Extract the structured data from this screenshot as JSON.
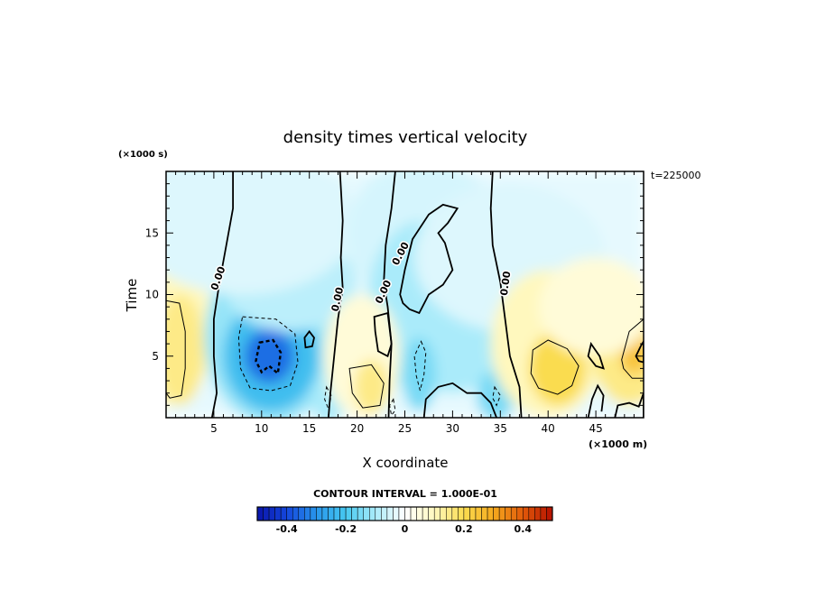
{
  "chart_data": {
    "type": "heatmap",
    "title": "density times vertical velocity",
    "xlabel": "X coordinate",
    "ylabel": "Time",
    "x_unit_label": "(×1000 m)",
    "y_unit_label": "(×1000 s)",
    "time_stamp": "t=225000",
    "xlim": [
      0,
      50
    ],
    "ylim": [
      0,
      20
    ],
    "x_ticks": [
      5,
      10,
      15,
      20,
      25,
      30,
      35,
      40,
      45
    ],
    "y_ticks": [
      5,
      10,
      15
    ],
    "contour_interval_text": "CONTOUR INTERVAL = 1.000E-01",
    "contour_labels": [
      "0.00",
      "0.00",
      "0.00",
      "0.00",
      "0.00"
    ],
    "colorbar": {
      "range": [
        -0.5,
        0.5
      ],
      "ticks": [
        "-0.4",
        "-0.2",
        "0",
        "0.2",
        "0.4"
      ],
      "tick_values": [
        -0.4,
        -0.2,
        0,
        0.2,
        0.4
      ]
    },
    "features": [
      {
        "name": "negative-core",
        "x": 11,
        "y": 5,
        "value": -0.4
      },
      {
        "name": "negative-lobe",
        "x": 26.5,
        "y": 3.5,
        "value": -0.15
      },
      {
        "name": "negative-lobe",
        "x": 34.5,
        "y": 1.5,
        "value": -0.15
      },
      {
        "name": "positive-lobe",
        "x": 1.5,
        "y": 5.5,
        "value": 0.15
      },
      {
        "name": "positive-lobe",
        "x": 21.5,
        "y": 2.5,
        "value": 0.15
      },
      {
        "name": "positive-lobe",
        "x": 41,
        "y": 4,
        "value": 0.2
      },
      {
        "name": "positive-lobe",
        "x": 48.5,
        "y": 5.5,
        "value": 0.2
      }
    ]
  },
  "colors": {
    "strong_negative": "#0a1fb0",
    "negative": "#3aaee6",
    "weak_negative": "#c8f0fb",
    "neutral": "#ffffff",
    "weak_positive": "#fff6c0",
    "positive": "#f7d23a",
    "strong_positive": "#cc1a00"
  }
}
